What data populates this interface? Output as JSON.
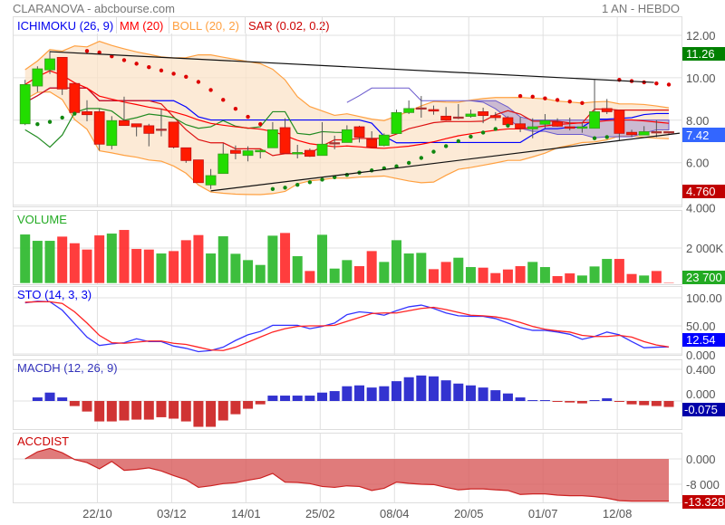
{
  "header": {
    "title": "CLARANOVA - abcbourse.com",
    "period": "1 AN - HEBDO"
  },
  "legend": {
    "ichimoku": "ICHIMOKU (26, 9)",
    "mm": "MM (20)",
    "boll": "BOLL (20, 2)",
    "sar": "SAR (0.02, 0.2)"
  },
  "colors": {
    "up": "#22dd00",
    "down": "#ff1a00",
    "ichimoku": "#0000ff",
    "mm": "#ff0000",
    "boll": "#ffa040",
    "sar": "#dd0000",
    "sar_up": "#118811"
  },
  "chart_data": [
    {
      "type": "candlestick",
      "panel": "price",
      "yticks": [
        "12.00",
        "10.00",
        "8.00",
        "6.00",
        "4.000"
      ],
      "ytick_values": [
        12,
        10,
        8,
        6,
        4
      ],
      "ylim": [
        4,
        12.7
      ],
      "badges": {
        "high": "11.26",
        "last": "7.42",
        "low": "4.760"
      },
      "ohlc": [
        [
          7.83,
          9.9,
          7.77,
          9.68
        ],
        [
          9.61,
          10.54,
          9.33,
          10.42
        ],
        [
          10.37,
          11.26,
          10.18,
          10.89
        ],
        [
          10.96,
          10.96,
          9.19,
          9.47
        ],
        [
          9.73,
          9.73,
          8.33,
          8.36
        ],
        [
          8.4,
          8.94,
          7.95,
          8.26
        ],
        [
          8.4,
          8.55,
          6.58,
          6.87
        ],
        [
          6.81,
          8.19,
          6.63,
          7.98
        ],
        [
          7.98,
          9.11,
          7.75,
          7.75
        ],
        [
          7.83,
          7.83,
          7.24,
          7.69
        ],
        [
          7.74,
          7.83,
          6.77,
          7.38
        ],
        [
          7.55,
          8.55,
          7.24,
          7.55
        ],
        [
          7.91,
          7.91,
          6.67,
          6.73
        ],
        [
          6.7,
          6.7,
          5.99,
          6.1
        ],
        [
          6.13,
          6.13,
          5.06,
          5.06
        ],
        [
          4.95,
          5.7,
          4.76,
          5.39
        ],
        [
          5.49,
          6.91,
          5.49,
          6.41
        ],
        [
          6.58,
          6.81,
          6.16,
          6.44
        ],
        [
          6.34,
          6.77,
          6.06,
          6.56
        ],
        [
          6.51,
          6.63,
          6.2,
          6.58
        ],
        [
          6.7,
          7.91,
          6.7,
          7.55
        ],
        [
          7.65,
          8.09,
          6.44,
          6.44
        ],
        [
          6.41,
          6.84,
          6.2,
          6.48
        ],
        [
          6.58,
          6.67,
          6.27,
          6.3
        ],
        [
          6.34,
          7.91,
          6.34,
          6.87
        ],
        [
          6.91,
          7.27,
          6.63,
          6.91
        ],
        [
          6.95,
          7.76,
          6.95,
          7.55
        ],
        [
          7.69,
          7.74,
          6.95,
          7.2
        ],
        [
          7.1,
          7.48,
          6.73,
          6.73
        ],
        [
          6.81,
          7.38,
          6.77,
          7.3
        ],
        [
          7.37,
          8.5,
          7.37,
          8.36
        ],
        [
          8.36,
          8.93,
          8.29,
          8.55
        ],
        [
          8.55,
          9.14,
          8.12,
          8.55
        ],
        [
          8.5,
          8.69,
          8.26,
          8.43
        ],
        [
          8.19,
          8.62,
          7.98,
          8.0
        ],
        [
          8.12,
          8.76,
          8.05,
          8.12
        ],
        [
          8.18,
          8.5,
          8.12,
          8.29
        ],
        [
          8.4,
          8.59,
          7.86,
          8.22
        ],
        [
          8.22,
          8.38,
          7.98,
          8.12
        ],
        [
          8.12,
          8.19,
          7.76,
          7.79
        ],
        [
          7.83,
          8.15,
          7.44,
          7.62
        ],
        [
          7.59,
          8.09,
          7.15,
          7.69
        ],
        [
          7.81,
          8.29,
          7.62,
          7.98
        ],
        [
          7.92,
          8.09,
          7.69,
          7.72
        ],
        [
          7.69,
          8.12,
          7.52,
          7.62
        ],
        [
          7.62,
          7.91,
          7.41,
          7.69
        ],
        [
          7.62,
          9.9,
          7.62,
          8.4
        ],
        [
          8.55,
          9.0,
          8.29,
          8.4
        ],
        [
          8.47,
          8.47,
          7.05,
          7.38
        ],
        [
          7.43,
          7.55,
          7.2,
          7.32
        ],
        [
          7.3,
          7.72,
          7.3,
          7.46
        ],
        [
          7.43,
          8.0,
          7.2,
          7.43
        ],
        [
          7.43,
          7.43,
          7.34,
          7.42
        ]
      ],
      "trendlines": [
        {
          "from": [
            3,
            11.23
          ],
          "to": [
            51.8,
            9.78
          ]
        },
        {
          "from": [
            16,
            4.67
          ],
          "to": [
            53.9,
            7.39
          ]
        }
      ]
    },
    {
      "type": "bar",
      "panel": "volume",
      "title": "VOLUME",
      "yticks": [
        "2 000K"
      ],
      "ytick_values": [
        2000
      ],
      "ylim": [
        0,
        3200
      ],
      "badge": "23 700",
      "values_k": [
        2774,
        2412,
        2412,
        2653,
        2274,
        1913,
        2722,
        2826,
        3033,
        1947,
        1913,
        1689,
        1826,
        2447,
        2740,
        1689,
        2671,
        1671,
        1310,
        1034,
        2705,
        2860,
        1534,
        689,
        2757,
        827,
        1310,
        965,
        1826,
        1206,
        2447,
        1689,
        1723,
        793,
        1206,
        1447,
        913,
        879,
        569,
        775,
        965,
        1206,
        913,
        396,
        551,
        431,
        948,
        1378,
        1378,
        517,
        431,
        689,
        23.7
      ]
    },
    {
      "type": "line",
      "panel": "stochastic",
      "title": "STO (14, 3, 3)",
      "yticks": [
        "100.00",
        "50.00",
        "0.000"
      ],
      "ytick_values": [
        100,
        50,
        0
      ],
      "ylim": [
        0,
        100
      ],
      "badge": "12.54",
      "series": [
        {
          "name": "%K",
          "color": "#3333ff",
          "values": [
            91,
            94,
            93,
            78,
            54,
            30,
            15,
            18,
            20,
            27,
            22,
            22,
            14,
            10,
            4,
            6,
            12,
            24,
            34,
            40,
            51,
            51,
            51,
            45,
            49,
            55,
            70,
            75,
            73,
            69,
            77,
            84,
            87,
            81,
            73,
            68,
            67,
            67,
            63,
            55,
            47,
            42,
            42,
            39,
            35,
            26,
            31,
            39,
            34,
            22,
            11,
            12,
            12.54
          ]
        },
        {
          "name": "%D",
          "color": "#ff2222",
          "values": [
            92,
            93,
            93,
            90,
            75,
            55,
            33,
            20,
            19,
            21,
            23,
            23,
            19,
            17,
            12,
            7,
            6,
            12,
            21,
            30,
            39,
            45,
            49,
            50,
            50,
            51,
            58,
            65,
            72,
            73,
            73,
            77,
            81,
            83,
            79,
            74,
            69,
            68,
            66,
            62,
            56,
            49,
            44,
            41,
            39,
            33,
            31,
            31,
            33,
            30,
            22,
            16,
            12.54
          ]
        }
      ]
    },
    {
      "type": "bar",
      "panel": "macd",
      "title": "MACDH (12, 26, 9)",
      "yticks": [
        "0.400",
        "0.000"
      ],
      "ytick_values": [
        0.4,
        0
      ],
      "ylim": [
        -0.36,
        0.46
      ],
      "badge": "-0.075",
      "values": [
        null,
        0.045,
        0.106,
        0.045,
        -0.064,
        -0.133,
        -0.258,
        -0.258,
        -0.246,
        -0.235,
        -0.235,
        -0.205,
        -0.223,
        -0.258,
        -0.326,
        -0.326,
        -0.246,
        -0.167,
        -0.098,
        -0.042,
        0.068,
        0.068,
        0.068,
        0.068,
        0.106,
        0.125,
        0.186,
        0.197,
        0.17,
        0.186,
        0.25,
        0.3,
        0.322,
        0.311,
        0.261,
        0.22,
        0.197,
        0.17,
        0.136,
        0.095,
        0.045,
        0.011,
        0.011,
        -0.008,
        -0.019,
        -0.03,
        0.011,
        0.034,
        -0.008,
        -0.042,
        -0.053,
        -0.064,
        -0.075
      ]
    },
    {
      "type": "area",
      "panel": "accdist",
      "title": "ACCDIST",
      "yticks": [
        "0.000",
        "-8 000"
      ],
      "ytick_values": [
        0,
        -8000
      ],
      "ylim": [
        -14500,
        5000
      ],
      "badge": "-13.328",
      "values": [
        0,
        2245,
        3320,
        1950,
        -195,
        -1170,
        -3120,
        -780,
        -3610,
        -3320,
        -2830,
        -3810,
        -5270,
        -6540,
        -8980,
        -8490,
        -7810,
        -7520,
        -6730,
        -6050,
        -4590,
        -7320,
        -7420,
        -7810,
        -8690,
        -8980,
        -8490,
        -8690,
        -9960,
        -9270,
        -7320,
        -7710,
        -8000,
        -8100,
        -8980,
        -9760,
        -9470,
        -9470,
        -9760,
        -9960,
        -11220,
        -11030,
        -11030,
        -11420,
        -11610,
        -11610,
        -11900,
        -12400,
        -13180,
        -13328,
        -13328,
        -13328,
        -13328
      ]
    }
  ],
  "xaxis": {
    "labels": [
      "22/10",
      "03/12",
      "14/01",
      "25/02",
      "08/04",
      "20/05",
      "01/07",
      "12/08"
    ],
    "positions": [
      6.8,
      12.8,
      18.8,
      24.8,
      30.8,
      36.8,
      42.8,
      48.8
    ]
  }
}
